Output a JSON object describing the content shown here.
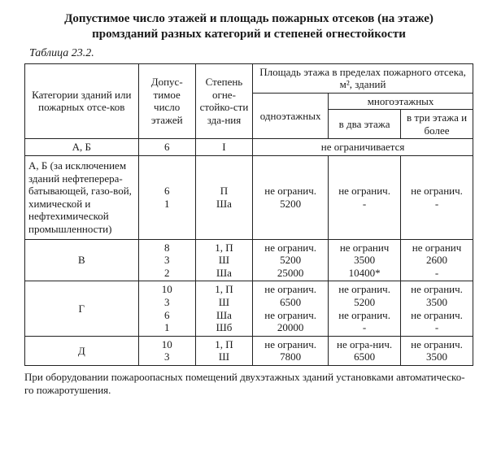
{
  "title_line1": "Допустимое число этажей и площадь пожарных отсеков (на этаже)",
  "title_line2": "промзданий разных категорий и степеней огнестойкости",
  "caption": "Таблица 23.2.",
  "head": {
    "col1": "Категории зданий или пожарных отсе-ков",
    "col2": "Допус-тимое число этажей",
    "col3": "Степень огне-стойко-сти зда-ния",
    "grp": "Площадь этажа в пределах пожарного отсека, м², зданий",
    "sub_one": "одноэтажных",
    "sub_multi": "многоэтажных",
    "sub_two": "в два этажа",
    "sub_three": "в три этажа и более"
  },
  "rows": {
    "r1": {
      "cat": "А, Б",
      "floors": "6",
      "grade": "I",
      "span": "не ограничивается"
    },
    "r2": {
      "cat": "А, Б (за исключением зданий нефтеперера-батывающей, газо-вой, химической и нефтехимической промышленности)",
      "floors": "6\n1",
      "grade": "П\nШа",
      "one": "не огранич.\n5200",
      "two": "не огранич.\n-",
      "three": "не огранич.\n-"
    },
    "r3": {
      "cat": "В",
      "floors": "8\n3\n2",
      "grade": "1, П\nШ\nШа",
      "one": "не огранич.\n5200\n25000",
      "two": "не огранич\n3500\n10400*",
      "three": "не огранич\n2600\n-"
    },
    "r4": {
      "cat": "Г",
      "floors": "10\n3\n6\n1",
      "grade": "1, П\nШ\nШа\nШб",
      "one": "не огранич.\n6500\nне огранич.\n20000",
      "two": "не огранич.\n5200\nне огранич.\n-",
      "three": "не огранич.\n3500\nне огранич.\n-"
    },
    "r5": {
      "cat": "Д",
      "floors": "10\n3",
      "grade": "1, П\nШ",
      "one": "не огранич.\n7800",
      "two": "не огра-нич.\n6500",
      "three": "не огранич.\n3500"
    }
  },
  "footnote": "При оборудовании пожароопасных помещений двухэтажных зданий установками автоматическо-го пожаротушения."
}
